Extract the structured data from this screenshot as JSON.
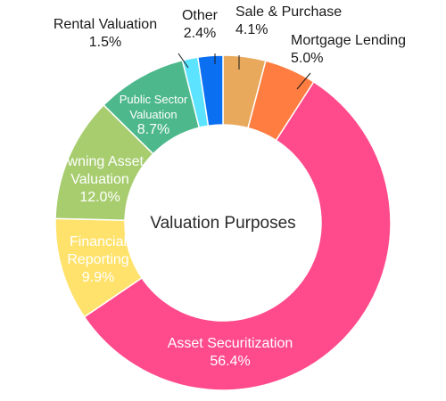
{
  "chart_data": {
    "type": "pie",
    "title": "Valuation Purposes",
    "donut": true,
    "slices": [
      {
        "label_lines": [
          "Sale & Purchase"
        ],
        "value": 4.1,
        "display": "4.1%",
        "color": "#E8A95C"
      },
      {
        "label_lines": [
          "Mortgage Lending"
        ],
        "value": 5.0,
        "display": "5.0%",
        "color": "#FF7D40"
      },
      {
        "label_lines": [
          "Asset Securitization"
        ],
        "value": 56.4,
        "display": "56.4%",
        "color": "#FF4A8B"
      },
      {
        "label_lines": [
          "Financial",
          "Reporting"
        ],
        "value": 9.9,
        "display": "9.9%",
        "color": "#FFE26B"
      },
      {
        "label_lines": [
          "Owning Asset",
          "Valuation"
        ],
        "value": 12.0,
        "display": "12.0%",
        "color": "#A7CD6F"
      },
      {
        "label_lines": [
          "Public Sector",
          "Valuation"
        ],
        "value": 8.7,
        "display": "8.7%",
        "color": "#4DB88B"
      },
      {
        "label_lines": [
          "Rental Valuation"
        ],
        "value": 1.5,
        "display": "1.5%",
        "color": "#5BE3FF"
      },
      {
        "label_lines": [
          "Other"
        ],
        "value": 2.4,
        "display": "2.4%",
        "color": "#0B6FF2"
      }
    ]
  }
}
